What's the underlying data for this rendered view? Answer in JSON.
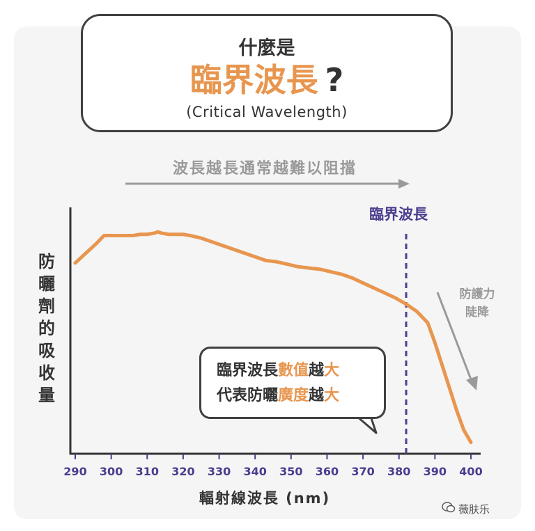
{
  "title": {
    "line1": "什麼是",
    "line2": "臨界波長",
    "question_mark": "?",
    "line3": "(Critical Wavelength)"
  },
  "annotations": {
    "arrow_text": "波長越長通常越難以阻擋",
    "critical_label": "臨界波長",
    "drop_line1": "防護力",
    "drop_line2": "陡降",
    "bubble_line1_a": "臨界波長",
    "bubble_line1_b": "數值",
    "bubble_line1_c": "越",
    "bubble_line1_d": "大",
    "bubble_line2_a": "代表防曬",
    "bubble_line2_b": "廣度",
    "bubble_line2_c": "越",
    "bubble_line2_d": "大"
  },
  "watermark": "薇肤乐",
  "colors": {
    "curve": "#e8964f",
    "critical": "#4a3d8f",
    "grey_arrow": "#9a9a9a",
    "axis": "#333333"
  },
  "chart_data": {
    "type": "line",
    "xlabel": "輻射線波長 (nm)",
    "ylabel": "防曬劑的吸收量",
    "xlim": [
      290,
      400
    ],
    "x_ticks": [
      290,
      300,
      310,
      320,
      330,
      340,
      350,
      360,
      370,
      380,
      390,
      400
    ],
    "critical_wavelength": 382,
    "y_ticks_shown": false,
    "series": [
      {
        "x": [
          290,
          293,
          296,
          298,
          300,
          303,
          306,
          308,
          310,
          312,
          313,
          314,
          316,
          318,
          320,
          322,
          325,
          328,
          331,
          334,
          337,
          340,
          343,
          346,
          349,
          352,
          355,
          358,
          361,
          364,
          367,
          370,
          373,
          376,
          379,
          382,
          385,
          388,
          390,
          392,
          394,
          396,
          398,
          400
        ],
        "y": [
          0.76,
          0.8,
          0.84,
          0.87,
          0.87,
          0.87,
          0.87,
          0.875,
          0.875,
          0.88,
          0.885,
          0.88,
          0.875,
          0.875,
          0.875,
          0.87,
          0.86,
          0.845,
          0.83,
          0.815,
          0.8,
          0.785,
          0.77,
          0.765,
          0.755,
          0.745,
          0.74,
          0.735,
          0.725,
          0.715,
          0.7,
          0.68,
          0.66,
          0.64,
          0.62,
          0.595,
          0.565,
          0.52,
          0.44,
          0.35,
          0.26,
          0.17,
          0.09,
          0.04
        ]
      }
    ]
  }
}
